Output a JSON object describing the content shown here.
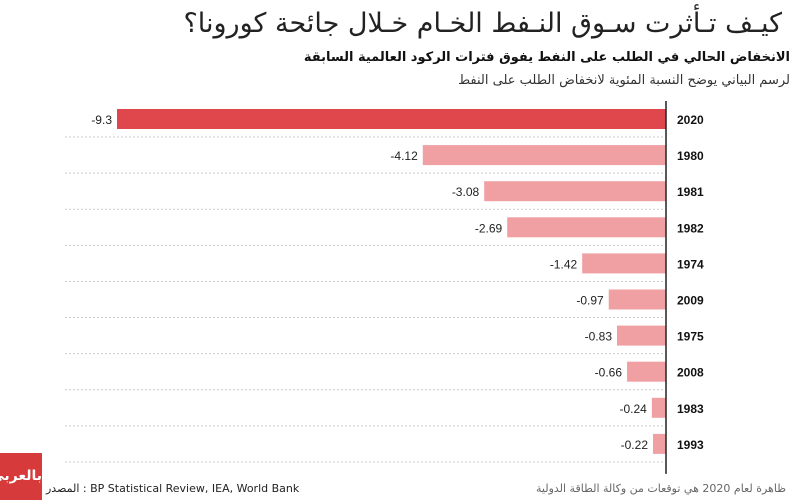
{
  "title": "كيـف تـأثرت سـوق النـفط الخـام خـلال جائحة كورونا؟",
  "subtitle": "الانخفاض الحالي في الطلب على النفط يفوق فترات الركود العالمية السابقة",
  "description": "لرسم البياني يوضح النسبة المئوية لانخفاض الطلب على النفط",
  "note": "ظاهرة لعام 2020 هي توقعات من وكالة الطاقة الدولية",
  "source": "المصدر : BP Statistical Review, IEA, World Bank",
  "logo_text": "بالعربي",
  "colors": {
    "highlight": "#e0474c",
    "bars": "#f0a0a2"
  },
  "chart_data": {
    "type": "bar",
    "orientation": "horizontal",
    "categories": [
      "2020",
      "1980",
      "1981",
      "1982",
      "1974",
      "2009",
      "1975",
      "2008",
      "1983",
      "1993"
    ],
    "values": [
      -9.3,
      -4.12,
      -3.08,
      -2.69,
      -1.42,
      -0.97,
      -0.83,
      -0.66,
      -0.24,
      -0.22
    ],
    "xlim": [
      -9.3,
      0
    ],
    "grid": true,
    "highlighted_category": "2020"
  }
}
